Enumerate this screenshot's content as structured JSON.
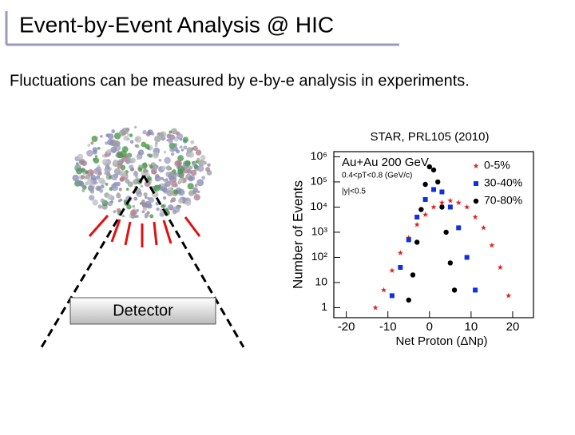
{
  "slide": {
    "title": "Event-by-Event Analysis @ HIC",
    "subtitle": "Fluctuations can be measured by e-by-e analysis in experiments.",
    "detector": "Detector",
    "citation": "STAR, PRL105 (2010)"
  },
  "chart_data": {
    "type": "scatter",
    "x_label": "Net Proton (ΔNp)",
    "y_label": "Number of Events",
    "annotations": [
      "Au+Au 200 GeV",
      "0.4<pT<0.8 (GeV/c)",
      "|y|<0.5"
    ],
    "xlim": [
      -23,
      25
    ],
    "xticks": [
      -20,
      -10,
      0,
      10,
      20
    ],
    "ylim": [
      0.4,
      1600000
    ],
    "log_y": true,
    "yticks": [
      1,
      10,
      {
        "value": 100,
        "label": "10²"
      },
      {
        "value": 1000,
        "label": "10³"
      },
      {
        "value": 10000,
        "label": "10⁴"
      },
      {
        "value": 100000,
        "label": "10⁵"
      },
      {
        "value": 1000000,
        "label": "10⁶"
      }
    ],
    "legend": "top-right",
    "series": [
      {
        "name": "0-5%",
        "color": "#e02020",
        "marker": "star",
        "x": [
          -13,
          -11,
          -9,
          -7,
          -5,
          -3,
          -1,
          1,
          3,
          5,
          7,
          9,
          11,
          13,
          15,
          17,
          19
        ],
        "values": [
          1,
          5,
          30,
          150,
          600,
          2000,
          5000,
          10000,
          15000,
          18000,
          15000,
          10000,
          4000,
          1500,
          300,
          40,
          3
        ]
      },
      {
        "name": "30-40%",
        "color": "#1030e0",
        "marker": "square",
        "x": [
          -9,
          -7,
          -5,
          -3,
          -1,
          1,
          3,
          5,
          7,
          9,
          11
        ],
        "values": [
          3,
          40,
          500,
          4000,
          20000,
          50000,
          40000,
          10000,
          1500,
          100,
          5
        ]
      },
      {
        "name": "70-80%",
        "color": "#000000",
        "marker": "circle",
        "x": [
          -5,
          -4,
          -3,
          -2,
          -1,
          0,
          1,
          2,
          3,
          4,
          5,
          6
        ],
        "values": [
          2,
          20,
          400,
          8000,
          80000,
          400000,
          300000,
          100000,
          10000,
          1000,
          60,
          5
        ]
      }
    ]
  }
}
